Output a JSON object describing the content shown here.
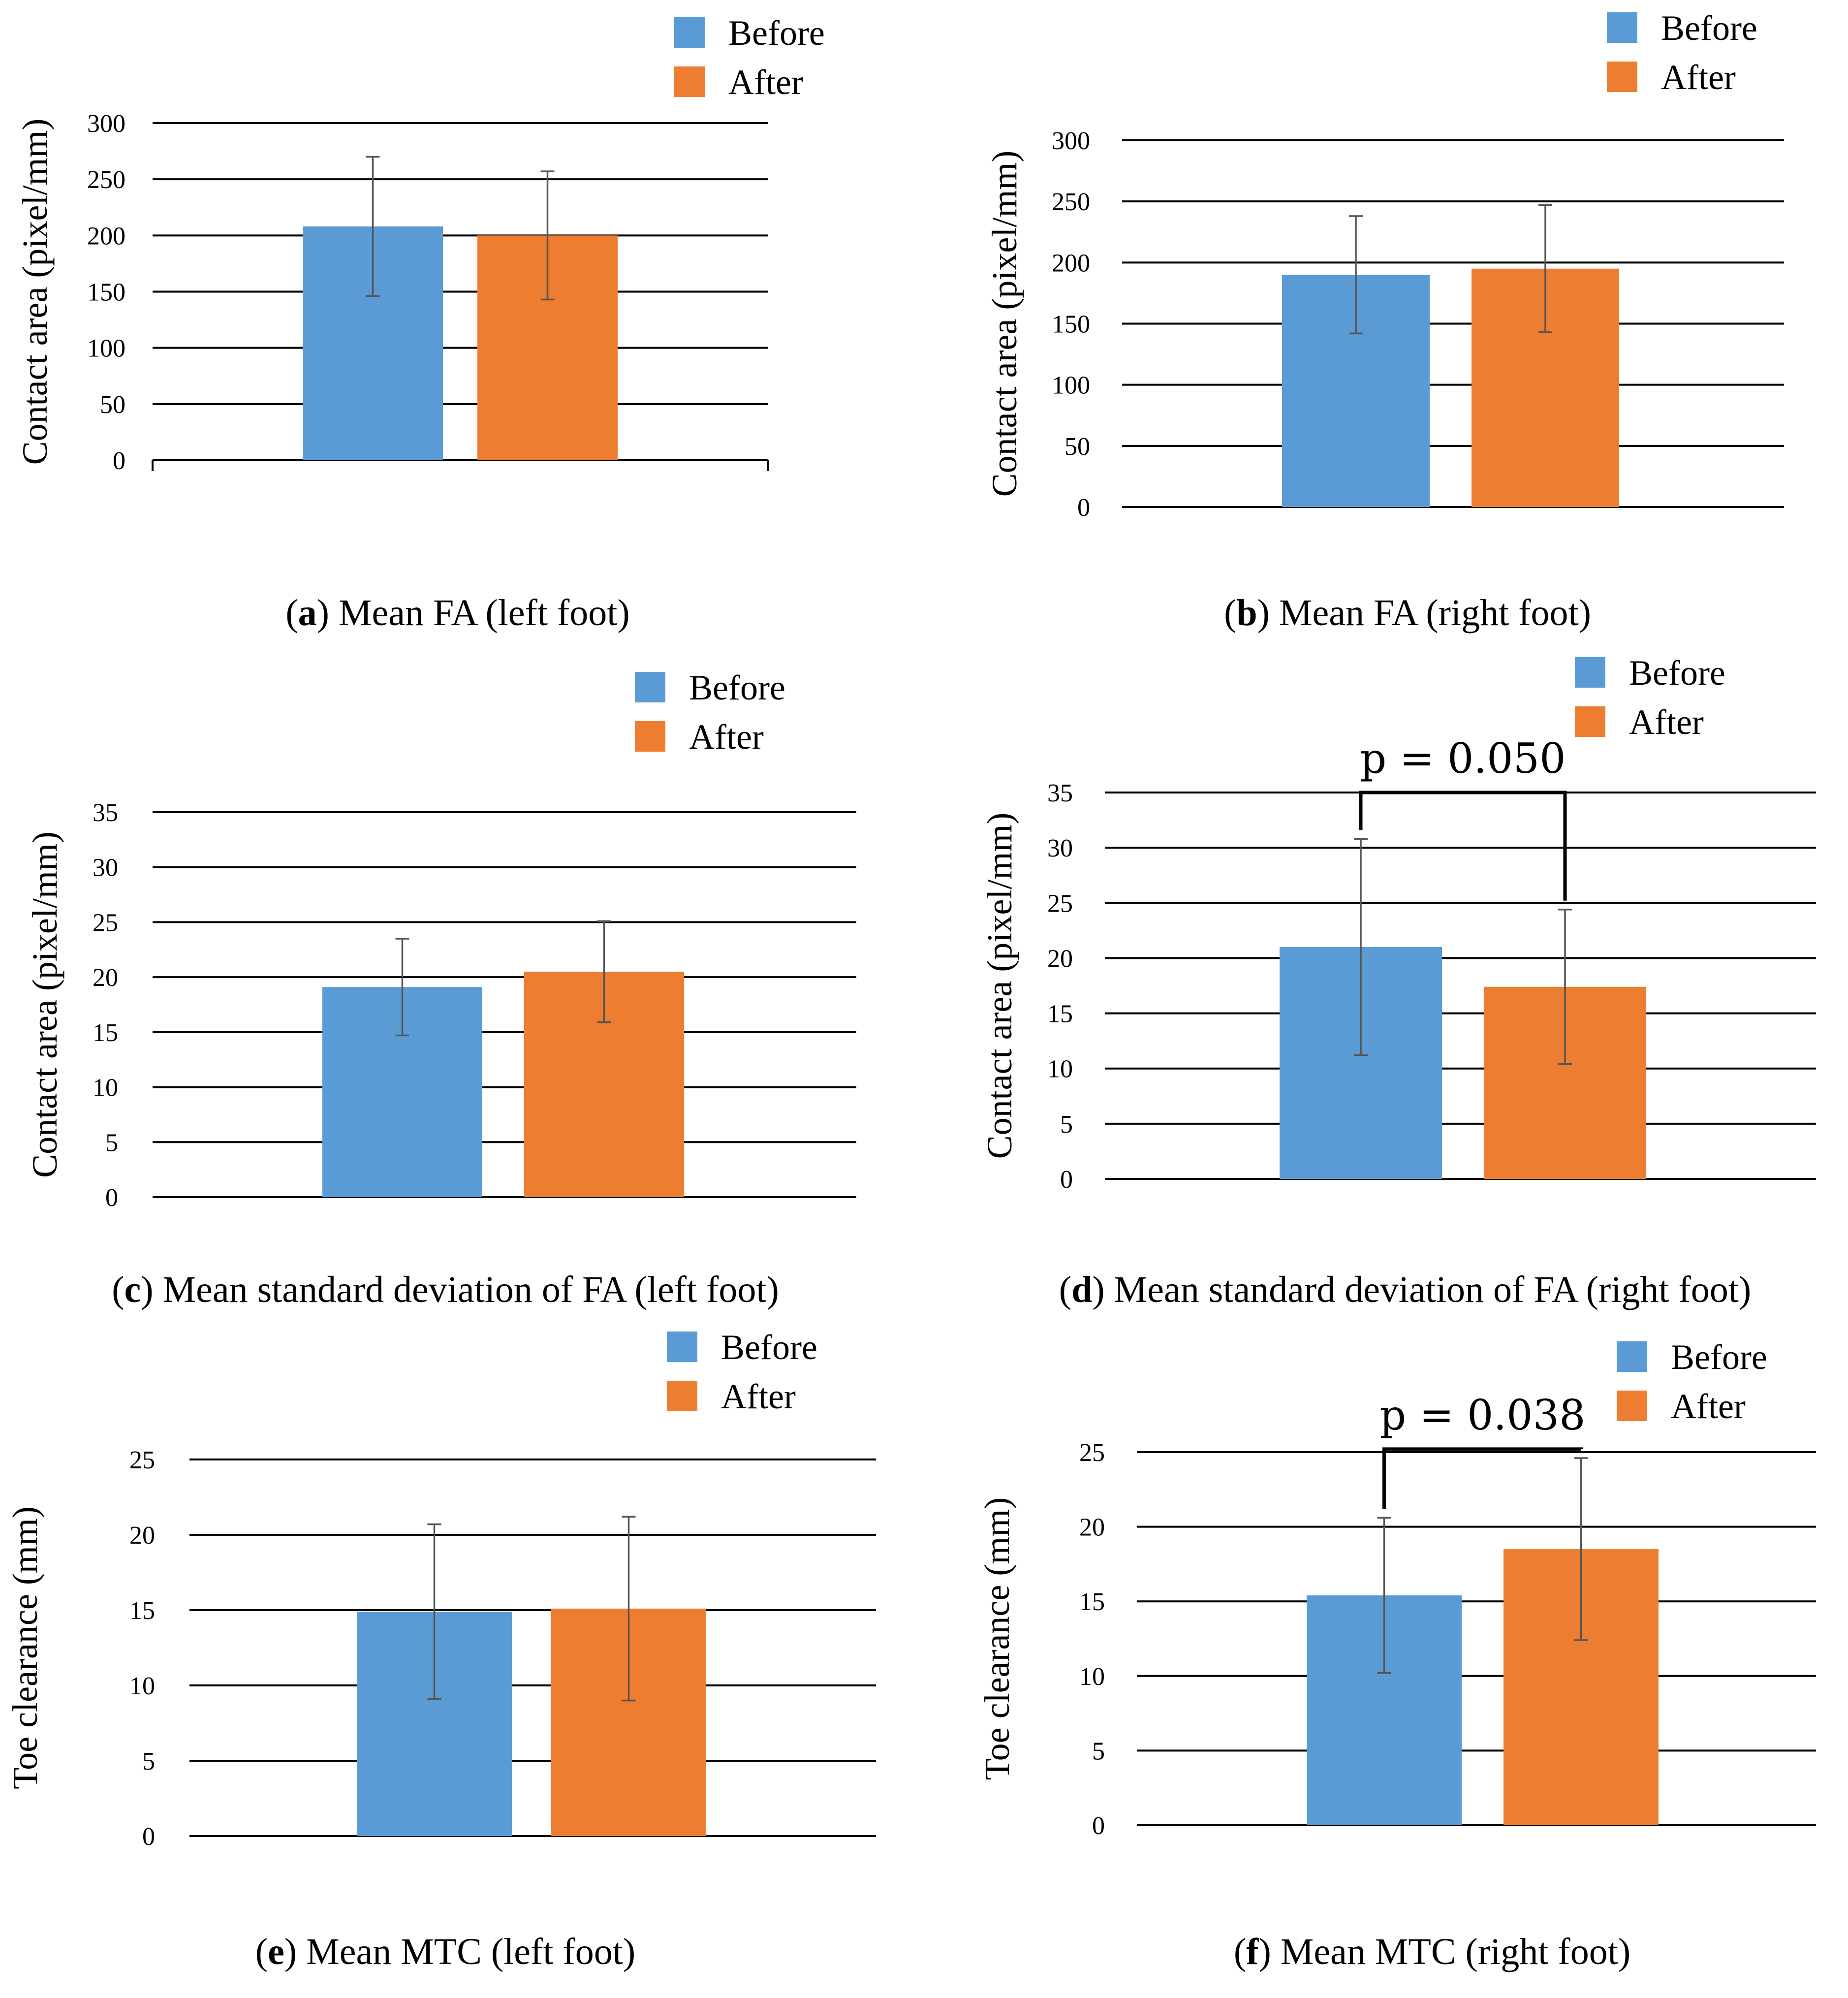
{
  "colors": {
    "before": "#5b9bd5",
    "after": "#ed7d31"
  },
  "chart_data": [
    {
      "type": "bar",
      "panel": "a",
      "caption_label": "a",
      "caption_text": ") Mean FA (left foot)",
      "ylabel": "Contact area (pixel/mm)",
      "ylim": [
        0,
        300
      ],
      "yticks": [
        0,
        50,
        100,
        150,
        200,
        250,
        300
      ],
      "legend": [
        "Before",
        "After"
      ],
      "series": [
        {
          "name": "Before",
          "value": 208,
          "error": 62
        },
        {
          "name": "After",
          "value": 200,
          "error": 57
        }
      ]
    },
    {
      "type": "bar",
      "panel": "b",
      "caption_label": "b",
      "caption_text": ") Mean FA (right foot)",
      "ylabel": "Contact area (pixel/mm)",
      "ylim": [
        0,
        300
      ],
      "yticks": [
        0,
        50,
        100,
        150,
        200,
        250,
        300
      ],
      "legend": [
        "Before",
        "After"
      ],
      "series": [
        {
          "name": "Before",
          "value": 190,
          "error": 48
        },
        {
          "name": "After",
          "value": 195,
          "error": 52
        }
      ]
    },
    {
      "type": "bar",
      "panel": "c",
      "caption_label": "c",
      "caption_text": ") Mean standard deviation of FA (left foot)",
      "ylabel": "Contact area (pixel/mm)",
      "ylim": [
        0,
        35
      ],
      "yticks": [
        0,
        5,
        10,
        15,
        20,
        25,
        30,
        35
      ],
      "legend": [
        "Before",
        "After"
      ],
      "series": [
        {
          "name": "Before",
          "value": 19.1,
          "error": 4.4
        },
        {
          "name": "After",
          "value": 20.5,
          "error": 4.6
        }
      ]
    },
    {
      "type": "bar",
      "panel": "d",
      "caption_label": "d",
      "caption_text": ") Mean standard deviation of FA (right foot)",
      "ylabel": "Contact area (pixel/mm)",
      "ylim": [
        0,
        35
      ],
      "yticks": [
        0,
        5,
        10,
        15,
        20,
        25,
        30,
        35
      ],
      "legend": [
        "Before",
        "After"
      ],
      "significance": {
        "text": "p = 0.050",
        "level": 35
      },
      "series": [
        {
          "name": "Before",
          "value": 21.0,
          "error": 9.8
        },
        {
          "name": "After",
          "value": 17.4,
          "error": 7.0
        }
      ]
    },
    {
      "type": "bar",
      "panel": "e",
      "caption_label": "e",
      "caption_text": ") Mean MTC (left foot)",
      "ylabel": "Toe clearance (mm)",
      "ylim": [
        0,
        25
      ],
      "yticks": [
        0,
        5,
        10,
        15,
        20,
        25
      ],
      "legend": [
        "Before",
        "After"
      ],
      "series": [
        {
          "name": "Before",
          "value": 14.9,
          "error": 5.8
        },
        {
          "name": "After",
          "value": 15.1,
          "error": 6.1
        }
      ]
    },
    {
      "type": "bar",
      "panel": "f",
      "caption_label": "f",
      "caption_text": ") Mean MTC (right foot)",
      "ylabel": "Toe clearance (mm)",
      "ylim": [
        0,
        25
      ],
      "yticks": [
        0,
        5,
        10,
        15,
        20,
        25
      ],
      "legend": [
        "Before",
        "After"
      ],
      "significance": {
        "text": "p = 0.038",
        "level": 25.2
      },
      "series": [
        {
          "name": "Before",
          "value": 15.4,
          "error": 5.2
        },
        {
          "name": "After",
          "value": 18.5,
          "error": 6.1
        }
      ]
    }
  ]
}
